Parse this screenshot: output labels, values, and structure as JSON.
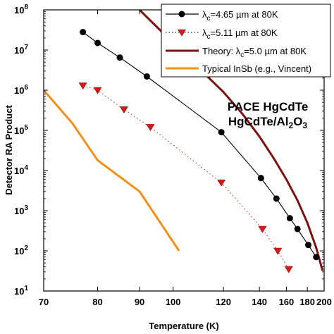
{
  "chart_data": {
    "type": "line",
    "xlabel": "Temperature (K)",
    "ylabel": "Detector RA Product",
    "x_scale": "reciprocal",
    "y_scale": "log",
    "xlim": [
      70,
      200
    ],
    "ylim_log10": [
      1,
      8
    ],
    "x_ticks": [
      "70",
      "80",
      "90",
      "100",
      "120",
      "140",
      "160",
      "180",
      "200"
    ],
    "y_ticks": [
      {
        "base": "10",
        "exp": "8"
      },
      {
        "base": "10",
        "exp": "7"
      },
      {
        "base": "10",
        "exp": "6"
      },
      {
        "base": "10",
        "exp": "5"
      },
      {
        "base": "10",
        "exp": "4"
      },
      {
        "base": "10",
        "exp": "3"
      },
      {
        "base": "10",
        "exp": "2"
      },
      {
        "base": "10",
        "exp": "1"
      }
    ],
    "annotation": {
      "line1": "PACE HgCdTe",
      "line2_a": "HgCdTe/Al",
      "line2_sub": "2",
      "line2_b": "O",
      "line2_sub2": "3"
    },
    "legend_position": "top-right",
    "series": [
      {
        "key": "s465",
        "legend": {
          "pre": "λ",
          "sub": "c",
          "post": "=4.65 µm at 80K"
        },
        "color": "#000000",
        "line_style": "solid",
        "marker": "circle",
        "points": [
          [
            77,
            28000000.0
          ],
          [
            80,
            15000000.0
          ],
          [
            85,
            6500000.0
          ],
          [
            92,
            2200000.0
          ],
          [
            119,
            90000.0
          ],
          [
            141,
            6500.0
          ],
          [
            152,
            2000.0
          ],
          [
            163,
            650.0
          ],
          [
            170,
            350.0
          ],
          [
            181,
            140.0
          ],
          [
            190,
            70.0
          ]
        ]
      },
      {
        "key": "s511",
        "legend": {
          "pre": "λ",
          "sub": "c",
          "post": "=5.11 µm at 80K"
        },
        "color": "#d11a1a",
        "line_style": "dotted",
        "marker": "triangle-down",
        "points": [
          [
            77,
            1300000.0
          ],
          [
            80,
            1000000.0
          ],
          [
            86,
            330000.0
          ],
          [
            93,
            120000.0
          ],
          [
            119,
            5000.0
          ],
          [
            142,
            350.0
          ],
          [
            153,
            100.0
          ],
          [
            162,
            35.0
          ]
        ]
      },
      {
        "key": "theory",
        "legend": {
          "pre": "Theory: λ",
          "sub": "c",
          "post": "=5.0 µm at 80K"
        },
        "color": "#7a1212",
        "line_style": "solid",
        "marker": "none",
        "points": [
          [
            90,
            100000000.0
          ],
          [
            100,
            15000000.0
          ],
          [
            110,
            3200000.0
          ],
          [
            120,
            900000.0
          ],
          [
            130,
            250000.0
          ],
          [
            140,
            70000.0
          ],
          [
            150,
            20000.0
          ],
          [
            160,
            6000.0
          ],
          [
            170,
            1800.0
          ],
          [
            180,
            500.0
          ],
          [
            190,
            120.0
          ],
          [
            198,
            32.0
          ]
        ]
      },
      {
        "key": "insb",
        "legend": {
          "pre": "Typical InSb (e.g., Vincent)",
          "sub": "",
          "post": ""
        },
        "color": "#f0901a",
        "line_style": "solid",
        "marker": "none",
        "points": [
          [
            70,
            1000000.0
          ],
          [
            75,
            150000.0
          ],
          [
            80,
            18000.0
          ],
          [
            90,
            3000.0
          ],
          [
            102,
            100.0
          ]
        ]
      }
    ]
  }
}
